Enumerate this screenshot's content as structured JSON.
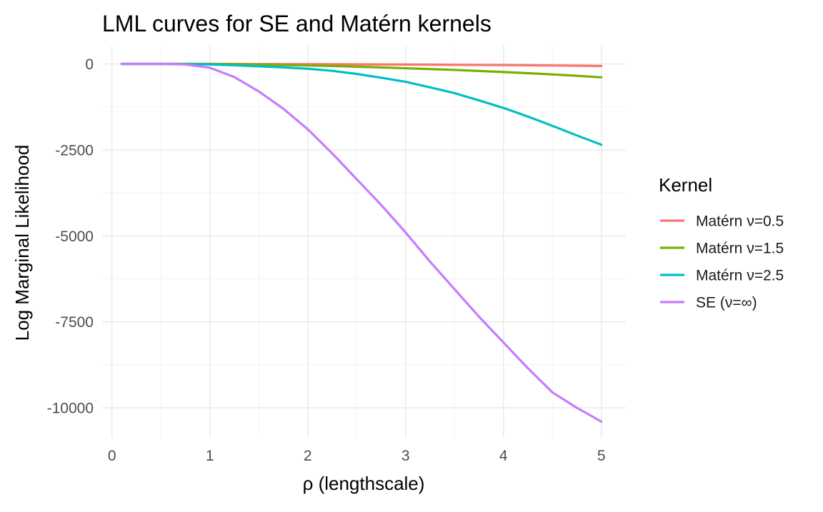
{
  "chart_data": {
    "type": "line",
    "title": "LML curves for SE and Matérn kernels",
    "xlabel": "ρ (lengthscale)",
    "ylabel": "Log Marginal Likelihood",
    "xlim": [
      -0.1,
      5.25
    ],
    "ylim": [
      -10870,
      530
    ],
    "x_ticks": [
      0,
      1,
      2,
      3,
      4,
      5
    ],
    "x_tick_labels": [
      "0",
      "1",
      "2",
      "3",
      "4",
      "5"
    ],
    "y_ticks": [
      0,
      -2500,
      -5000,
      -7500,
      -10000
    ],
    "y_tick_labels": [
      "0",
      "-2500",
      "-5000",
      "-7500",
      "-10000"
    ],
    "grid": true,
    "legend": {
      "title": "Kernel",
      "position": "right"
    },
    "x": [
      0.1,
      0.25,
      0.5,
      0.75,
      1.0,
      1.25,
      1.5,
      1.75,
      2.0,
      2.25,
      2.5,
      2.75,
      3.0,
      3.25,
      3.5,
      3.75,
      4.0,
      4.25,
      4.5,
      4.75,
      5.0
    ],
    "series": [
      {
        "name": "Matérn ν=0.5",
        "color": "#F8766D",
        "values": [
          0,
          0,
          0,
          0,
          0,
          -2,
          -4,
          -6,
          -8,
          -10,
          -12,
          -15,
          -18,
          -21,
          -25,
          -29,
          -34,
          -39,
          -45,
          -52,
          -60
        ]
      },
      {
        "name": "Matérn ν=1.5",
        "color": "#7CAE00",
        "values": [
          0,
          0,
          0,
          0,
          -5,
          -10,
          -20,
          -30,
          -45,
          -60,
          -80,
          -100,
          -125,
          -150,
          -175,
          -205,
          -235,
          -270,
          -305,
          -345,
          -390
        ]
      },
      {
        "name": "Matérn ν=2.5",
        "color": "#00BFC4",
        "values": [
          0,
          0,
          0,
          -5,
          -15,
          -40,
          -70,
          -100,
          -140,
          -200,
          -290,
          -400,
          -520,
          -680,
          -850,
          -1060,
          -1280,
          -1530,
          -1800,
          -2080,
          -2350
        ]
      },
      {
        "name": "SE (ν=∞)",
        "color": "#C77CFF",
        "values": [
          0,
          0,
          0,
          -15,
          -110,
          -380,
          -800,
          -1300,
          -1900,
          -2600,
          -3350,
          -4100,
          -4900,
          -5750,
          -6550,
          -7350,
          -8100,
          -8850,
          -9550,
          -10000,
          -10400
        ]
      }
    ]
  }
}
